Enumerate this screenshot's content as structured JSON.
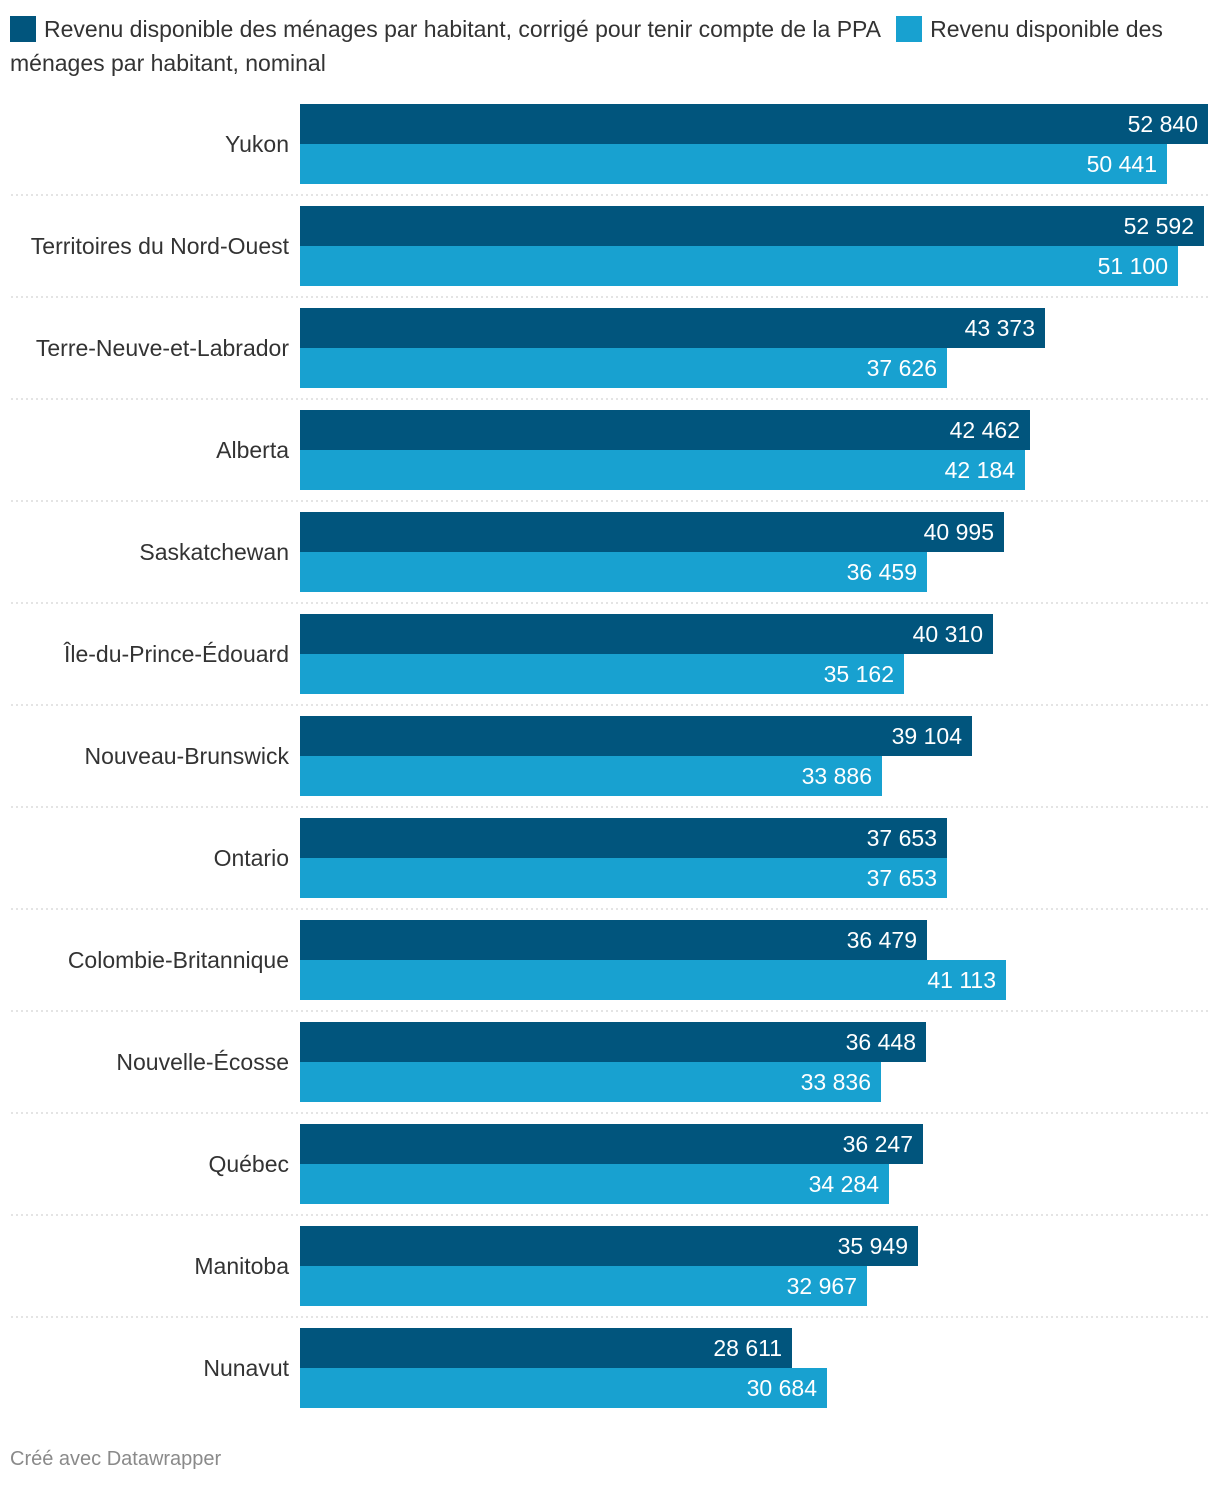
{
  "chart_data": {
    "type": "bar",
    "orientation": "horizontal",
    "title": "",
    "xlabel": "",
    "ylabel": "",
    "xlim": [
      0,
      52840
    ],
    "categories": [
      "Yukon",
      "Territoires du Nord-Ouest",
      "Terre-Neuve-et-Labrador",
      "Alberta",
      "Saskatchewan",
      "Île-du-Prince-Édouard",
      "Nouveau-Brunswick",
      "Ontario",
      "Colombie-Britannique",
      "Nouvelle-Écosse",
      "Québec",
      "Manitoba",
      "Nunavut"
    ],
    "series": [
      {
        "name": "Revenu disponible des ménages par habitant, corrigé pour tenir compte de la PPA",
        "color": "#01557d",
        "values": [
          52840,
          52592,
          43373,
          42462,
          40995,
          40310,
          39104,
          37653,
          36479,
          36448,
          36247,
          35949,
          28611
        ],
        "labels": [
          "52 840",
          "52 592",
          "43 373",
          "42 462",
          "40 995",
          "40 310",
          "39 104",
          "37 653",
          "36 479",
          "36 448",
          "36 247",
          "35 949",
          "28 611"
        ]
      },
      {
        "name": "Revenu disponible des ménages par habitant, nominal",
        "color": "#18a1d0",
        "values": [
          50441,
          51100,
          37626,
          42184,
          36459,
          35162,
          33886,
          37653,
          41113,
          33836,
          34284,
          32967,
          30684
        ],
        "labels": [
          "50 441",
          "51 100",
          "37 626",
          "42 184",
          "36 459",
          "35 162",
          "33 886",
          "37 653",
          "41 113",
          "33 836",
          "34 284",
          "32 967",
          "30 684"
        ]
      }
    ],
    "gridlines": false,
    "legend_position": "top"
  },
  "footer": {
    "credit": "Créé avec Datawrapper"
  }
}
